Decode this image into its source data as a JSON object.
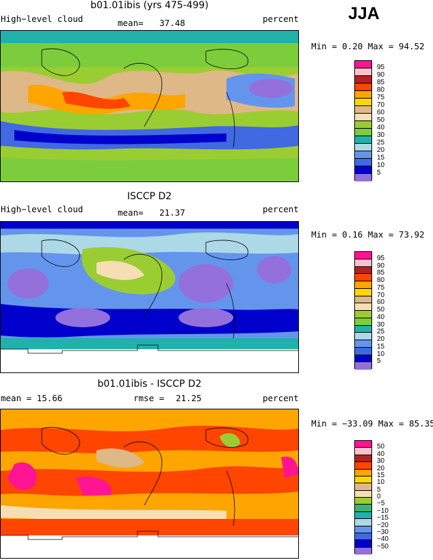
{
  "season": "JJA",
  "panels": [
    {
      "title": "b01.01ibis (yrs 475-499)",
      "left_label": "High−level cloud",
      "stat_label": "mean=",
      "stat_value": "37.48",
      "units": "percent",
      "minmax_text": "Min =    0.20  Max =   94.52",
      "legend_labels": [
        "95",
        "90",
        "85",
        "80",
        "75",
        "70",
        "60",
        "50",
        "40",
        "30",
        "25",
        "20",
        "15",
        "10",
        "5"
      ],
      "legend_colors": [
        "#ff1493",
        "#ffc0cb",
        "#b22222",
        "#ff4500",
        "#ffa500",
        "#ffd700",
        "#deb887",
        "#f5deb3",
        "#9acd32",
        "#7ccd3c",
        "#20b2aa",
        "#add8e6",
        "#6495ed",
        "#4169e1",
        "#0000cd",
        "#9370db"
      ]
    },
    {
      "title": "ISCCP D2",
      "left_label": "High−level cloud",
      "stat_label": "mean=",
      "stat_value": "21.37",
      "units": "percent",
      "minmax_text": "Min =    0.16  Max =   73.92",
      "legend_labels": [
        "95",
        "90",
        "85",
        "80",
        "75",
        "70",
        "60",
        "50",
        "40",
        "30",
        "25",
        "20",
        "15",
        "10",
        "5"
      ],
      "legend_colors": [
        "#ff1493",
        "#ffc0cb",
        "#b22222",
        "#ff4500",
        "#ffa500",
        "#ffd700",
        "#deb887",
        "#f5deb3",
        "#9acd32",
        "#7ccd3c",
        "#20b2aa",
        "#add8e6",
        "#6495ed",
        "#4169e1",
        "#0000cd",
        "#9370db"
      ]
    },
    {
      "title": "b01.01ibis - ISCCP D2",
      "left_label": "mean =   15.66",
      "stat_label": "rmse =",
      "stat_value": "21.25",
      "units": "percent",
      "minmax_text": "Min = −33.09  Max =   85.35",
      "legend_labels": [
        "50",
        "40",
        "30",
        "20",
        "15",
        "10",
        "5",
        "0",
        "−5",
        "−10",
        "−15",
        "−20",
        "−30",
        "−40",
        "−50"
      ],
      "legend_colors": [
        "#ff1493",
        "#ffc0cb",
        "#b22222",
        "#ff4500",
        "#ffa500",
        "#ffd700",
        "#deb887",
        "#f5deb3",
        "#9acd32",
        "#3cb371",
        "#20b2aa",
        "#add8e6",
        "#6495ed",
        "#4169e1",
        "#0000cd",
        "#9370db"
      ]
    }
  ]
}
